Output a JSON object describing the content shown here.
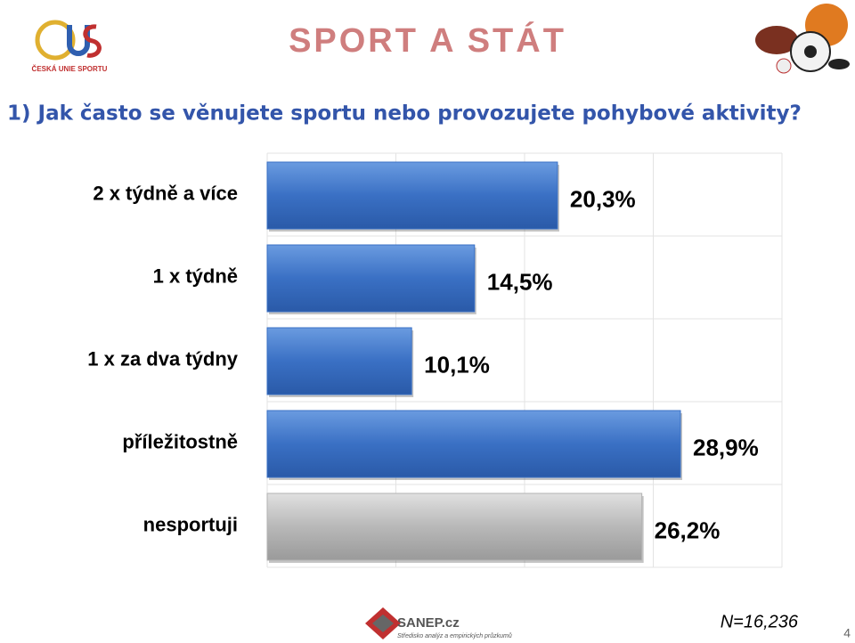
{
  "header": {
    "title": "SPORT A STÁT",
    "logo_text": "ČESKÁ UNIE SPORTU",
    "question": "1) Jak často se věnujete sportu nebo provozujete pohybové aktivity?"
  },
  "chart_data": {
    "type": "hbar",
    "categories": [
      "2 x týdně a více",
      "1 x týdně",
      "1 x za dva týdny",
      "příležitostně",
      "nesportuji"
    ],
    "values": [
      20.3,
      14.5,
      10.1,
      28.9,
      26.2
    ],
    "value_labels": [
      "20,3%",
      "14,5%",
      "10,1%",
      "28,9%",
      "26,2%"
    ],
    "colors": [
      "#3a70c4",
      "#3a70c4",
      "#3a70c4",
      "#3a70c4",
      "#b3b3b3"
    ],
    "xlim": [
      0,
      36
    ],
    "xticks": [
      0,
      9,
      18,
      27,
      36
    ],
    "grid": true
  },
  "footer": {
    "brand": "SANEP.cz",
    "brand_sub": "Středisko analýz a empirických průzkumů",
    "sample": "N=16,236",
    "page": "4"
  }
}
